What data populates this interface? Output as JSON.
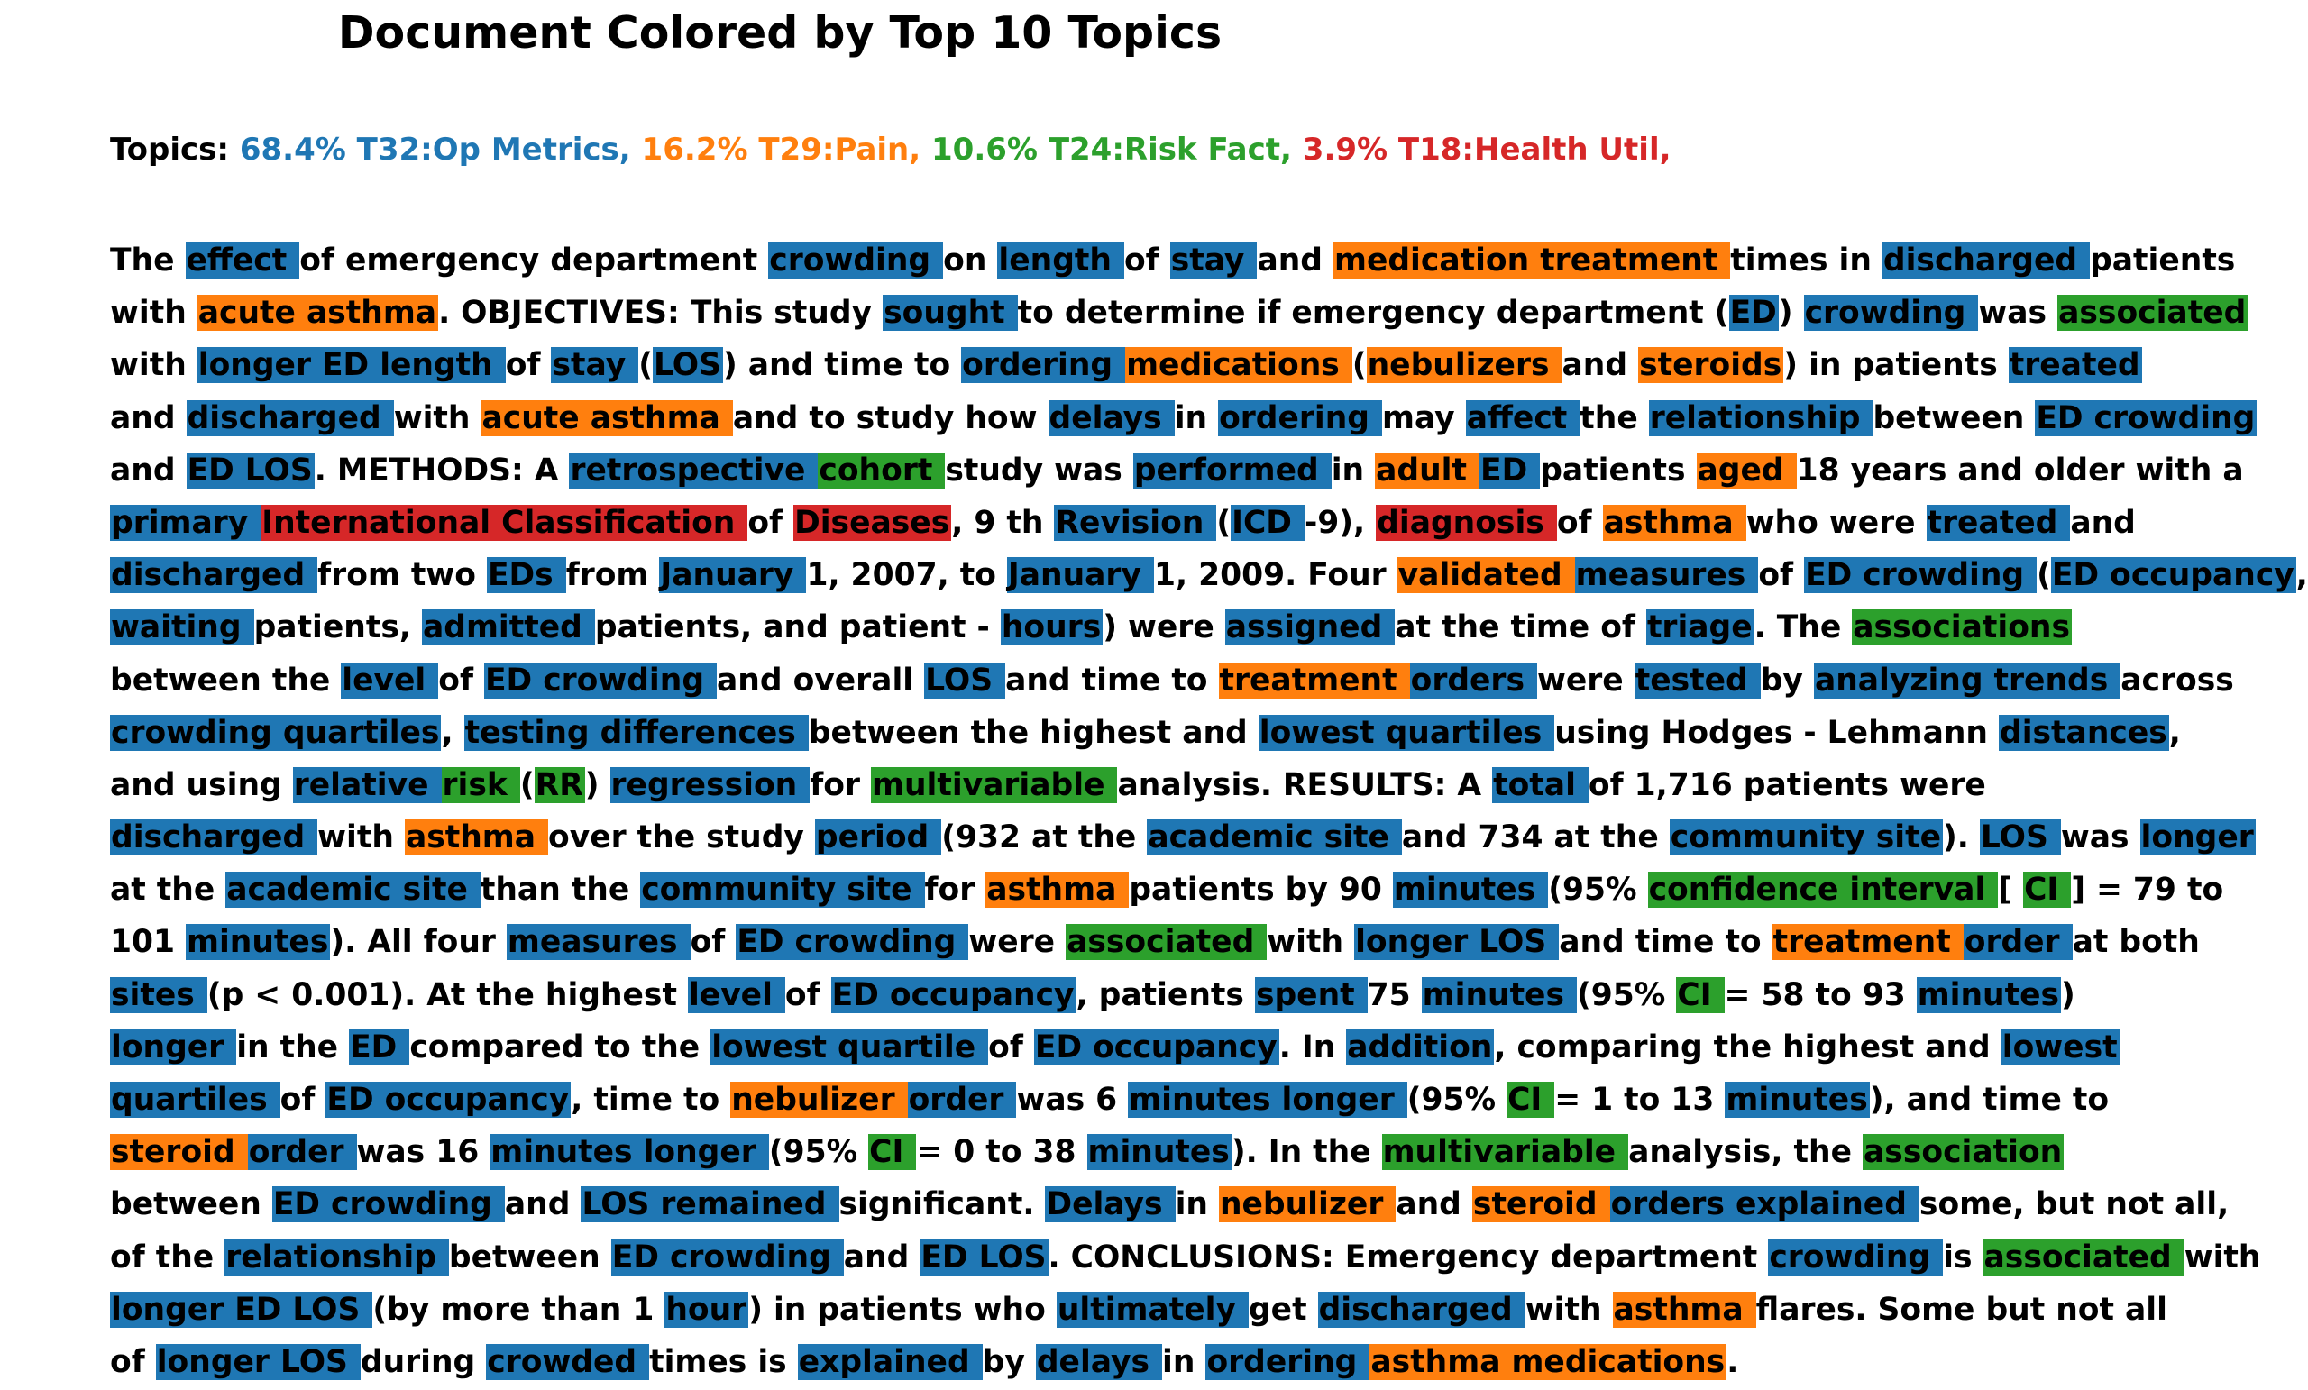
{
  "title": "Document Colored by Top 10 Topics",
  "topics_label": "Topics:",
  "topics": [
    {
      "text": "68.4% T32:Op Metrics,",
      "color": "#1f77b4"
    },
    {
      "text": "16.2% T29:Pain,",
      "color": "#ff7f0e"
    },
    {
      "text": "10.6% T24:Risk Fact,",
      "color": "#2ca02c"
    },
    {
      "text": "3.9% T18:Health Util,",
      "color": "#d62728"
    }
  ],
  "palette": [
    "#1f77b4",
    "#ff7f0e",
    "#2ca02c",
    "#d62728"
  ],
  "lines": [
    [
      [
        "The ",
        null
      ],
      [
        "effect ",
        0
      ],
      [
        "of emergency department ",
        null
      ],
      [
        "crowding ",
        0
      ],
      [
        "on ",
        null
      ],
      [
        "length ",
        0
      ],
      [
        "of ",
        null
      ],
      [
        "stay ",
        0
      ],
      [
        "and ",
        null
      ],
      [
        "medication treatment ",
        1
      ],
      [
        "times in ",
        null
      ],
      [
        "discharged ",
        0
      ],
      [
        "patients",
        null
      ]
    ],
    [
      [
        "with ",
        null
      ],
      [
        "acute asthma",
        1
      ],
      [
        ". OBJECTIVES: This study ",
        null
      ],
      [
        "sought ",
        0
      ],
      [
        "to determine if emergency department (",
        null
      ],
      [
        "ED",
        0
      ],
      [
        ") ",
        null
      ],
      [
        "crowding ",
        0
      ],
      [
        "was ",
        null
      ],
      [
        "associated ",
        2
      ]
    ],
    [
      [
        "with ",
        null
      ],
      [
        "longer ED length ",
        0
      ],
      [
        "of ",
        null
      ],
      [
        "stay ",
        0
      ],
      [
        "(",
        null
      ],
      [
        "LOS",
        0
      ],
      [
        ") and time to ",
        null
      ],
      [
        "ordering ",
        0
      ],
      [
        "medications ",
        1
      ],
      [
        "(",
        null
      ],
      [
        "nebulizers ",
        1
      ],
      [
        "and ",
        null
      ],
      [
        "steroids",
        1
      ],
      [
        ") in patients ",
        null
      ],
      [
        "treated ",
        0
      ]
    ],
    [
      [
        "and ",
        null
      ],
      [
        "discharged ",
        0
      ],
      [
        "with ",
        null
      ],
      [
        "acute asthma ",
        1
      ],
      [
        "and to study how ",
        null
      ],
      [
        "delays ",
        0
      ],
      [
        "in ",
        null
      ],
      [
        "ordering ",
        0
      ],
      [
        "may ",
        null
      ],
      [
        "affect ",
        0
      ],
      [
        "the ",
        null
      ],
      [
        "relationship ",
        0
      ],
      [
        "between ",
        null
      ],
      [
        "ED crowding ",
        0
      ]
    ],
    [
      [
        "and ",
        null
      ],
      [
        "ED LOS",
        0
      ],
      [
        ". METHODS: A ",
        null
      ],
      [
        "retrospective ",
        0
      ],
      [
        "cohort ",
        2
      ],
      [
        "study was ",
        null
      ],
      [
        "performed ",
        0
      ],
      [
        "in ",
        null
      ],
      [
        "adult ",
        1
      ],
      [
        "ED ",
        0
      ],
      [
        "patients ",
        null
      ],
      [
        "aged ",
        1
      ],
      [
        "18 years and older with a",
        null
      ]
    ],
    [
      [
        "primary ",
        0
      ],
      [
        "International Classification ",
        3
      ],
      [
        "of ",
        null
      ],
      [
        "Diseases",
        3
      ],
      [
        ", 9 th ",
        null
      ],
      [
        "Revision ",
        0
      ],
      [
        "(",
        null
      ],
      [
        "ICD ",
        0
      ],
      [
        "-9), ",
        null
      ],
      [
        "diagnosis ",
        3
      ],
      [
        "of ",
        null
      ],
      [
        "asthma ",
        1
      ],
      [
        "who were ",
        null
      ],
      [
        "treated ",
        0
      ],
      [
        "and",
        null
      ]
    ],
    [
      [
        "discharged ",
        0
      ],
      [
        "from two ",
        null
      ],
      [
        "EDs ",
        0
      ],
      [
        "from ",
        null
      ],
      [
        "January ",
        0
      ],
      [
        "1, 2007, to ",
        null
      ],
      [
        "January ",
        0
      ],
      [
        "1, 2009. Four ",
        null
      ],
      [
        "validated ",
        1
      ],
      [
        "measures ",
        0
      ],
      [
        "of ",
        null
      ],
      [
        "ED crowding ",
        0
      ],
      [
        "(",
        null
      ],
      [
        "ED occupancy",
        0
      ],
      [
        ",",
        null
      ]
    ],
    [
      [
        "waiting ",
        0
      ],
      [
        "patients, ",
        null
      ],
      [
        "admitted ",
        0
      ],
      [
        "patients, and patient - ",
        null
      ],
      [
        "hours",
        0
      ],
      [
        ") were ",
        null
      ],
      [
        "assigned ",
        0
      ],
      [
        "at the time of ",
        null
      ],
      [
        "triage",
        0
      ],
      [
        ". The ",
        null
      ],
      [
        "associations ",
        2
      ]
    ],
    [
      [
        "between the ",
        null
      ],
      [
        "level ",
        0
      ],
      [
        "of ",
        null
      ],
      [
        "ED crowding ",
        0
      ],
      [
        "and overall ",
        null
      ],
      [
        "LOS ",
        0
      ],
      [
        "and time to ",
        null
      ],
      [
        "treatment ",
        1
      ],
      [
        "orders ",
        0
      ],
      [
        "were ",
        null
      ],
      [
        "tested ",
        0
      ],
      [
        "by ",
        null
      ],
      [
        "analyzing trends ",
        0
      ],
      [
        "across",
        null
      ]
    ],
    [
      [
        "crowding quartiles",
        0
      ],
      [
        ", ",
        null
      ],
      [
        "testing differences ",
        0
      ],
      [
        "between the highest and ",
        null
      ],
      [
        "lowest quartiles ",
        0
      ],
      [
        "using Hodges - Lehmann ",
        null
      ],
      [
        "distances",
        0
      ],
      [
        ",",
        null
      ]
    ],
    [
      [
        "and using ",
        null
      ],
      [
        "relative ",
        0
      ],
      [
        "risk ",
        2
      ],
      [
        "(",
        null
      ],
      [
        "RR",
        2
      ],
      [
        ") ",
        null
      ],
      [
        "regression ",
        0
      ],
      [
        "for ",
        null
      ],
      [
        "multivariable ",
        2
      ],
      [
        "analysis. RESULTS: A ",
        null
      ],
      [
        "total ",
        0
      ],
      [
        "of 1,716 patients were",
        null
      ]
    ],
    [
      [
        "discharged ",
        0
      ],
      [
        "with ",
        null
      ],
      [
        "asthma ",
        1
      ],
      [
        "over the study ",
        null
      ],
      [
        "period ",
        0
      ],
      [
        "(932 at the ",
        null
      ],
      [
        "academic site ",
        0
      ],
      [
        "and 734 at the ",
        null
      ],
      [
        "community site",
        0
      ],
      [
        "). ",
        null
      ],
      [
        "LOS ",
        0
      ],
      [
        "was ",
        null
      ],
      [
        "longer ",
        0
      ]
    ],
    [
      [
        "at the ",
        null
      ],
      [
        "academic site ",
        0
      ],
      [
        "than the ",
        null
      ],
      [
        "community site ",
        0
      ],
      [
        "for ",
        null
      ],
      [
        "asthma ",
        1
      ],
      [
        "patients by 90 ",
        null
      ],
      [
        "minutes ",
        0
      ],
      [
        "(95% ",
        null
      ],
      [
        "confidence interval ",
        2
      ],
      [
        "[ ",
        null
      ],
      [
        "CI ",
        2
      ],
      [
        "] = 79 to",
        null
      ]
    ],
    [
      [
        "101 ",
        null
      ],
      [
        "minutes",
        0
      ],
      [
        "). All four ",
        null
      ],
      [
        "measures ",
        0
      ],
      [
        "of ",
        null
      ],
      [
        "ED crowding ",
        0
      ],
      [
        "were ",
        null
      ],
      [
        "associated ",
        2
      ],
      [
        "with ",
        null
      ],
      [
        "longer LOS ",
        0
      ],
      [
        "and time to ",
        null
      ],
      [
        "treatment ",
        1
      ],
      [
        "order ",
        0
      ],
      [
        "at both",
        null
      ]
    ],
    [
      [
        "sites ",
        0
      ],
      [
        "(p < 0.001). At the highest ",
        null
      ],
      [
        "level ",
        0
      ],
      [
        "of ",
        null
      ],
      [
        "ED occupancy",
        0
      ],
      [
        ", patients ",
        null
      ],
      [
        "spent ",
        0
      ],
      [
        "75 ",
        null
      ],
      [
        "minutes ",
        0
      ],
      [
        "(95% ",
        null
      ],
      [
        "CI ",
        2
      ],
      [
        "= 58 to 93 ",
        null
      ],
      [
        "minutes",
        0
      ],
      [
        ")",
        null
      ]
    ],
    [
      [
        "longer ",
        0
      ],
      [
        "in the ",
        null
      ],
      [
        "ED ",
        0
      ],
      [
        "compared to the ",
        null
      ],
      [
        "lowest quartile ",
        0
      ],
      [
        "of ",
        null
      ],
      [
        "ED occupancy",
        0
      ],
      [
        ". In ",
        null
      ],
      [
        "addition",
        0
      ],
      [
        ", comparing the highest and ",
        null
      ],
      [
        "lowest ",
        0
      ]
    ],
    [
      [
        "quartiles ",
        0
      ],
      [
        "of ",
        null
      ],
      [
        "ED occupancy",
        0
      ],
      [
        ", time to ",
        null
      ],
      [
        "nebulizer ",
        1
      ],
      [
        "order ",
        0
      ],
      [
        "was 6 ",
        null
      ],
      [
        "minutes longer ",
        0
      ],
      [
        "(95% ",
        null
      ],
      [
        "CI ",
        2
      ],
      [
        "= 1 to 13 ",
        null
      ],
      [
        "minutes",
        0
      ],
      [
        "), and time to",
        null
      ]
    ],
    [
      [
        "steroid ",
        1
      ],
      [
        "order ",
        0
      ],
      [
        "was 16 ",
        null
      ],
      [
        "minutes longer ",
        0
      ],
      [
        "(95% ",
        null
      ],
      [
        "CI ",
        2
      ],
      [
        "= 0 to 38 ",
        null
      ],
      [
        "minutes",
        0
      ],
      [
        "). In the ",
        null
      ],
      [
        "multivariable ",
        2
      ],
      [
        "analysis, the ",
        null
      ],
      [
        "association ",
        2
      ]
    ],
    [
      [
        "between ",
        null
      ],
      [
        "ED crowding ",
        0
      ],
      [
        "and ",
        null
      ],
      [
        "LOS remained ",
        0
      ],
      [
        "significant. ",
        null
      ],
      [
        "Delays ",
        0
      ],
      [
        "in ",
        null
      ],
      [
        "nebulizer ",
        1
      ],
      [
        "and ",
        null
      ],
      [
        "steroid ",
        1
      ],
      [
        "orders explained ",
        0
      ],
      [
        "some, but not all,",
        null
      ]
    ],
    [
      [
        "of the ",
        null
      ],
      [
        "relationship ",
        0
      ],
      [
        "between ",
        null
      ],
      [
        "ED crowding ",
        0
      ],
      [
        "and ",
        null
      ],
      [
        "ED LOS",
        0
      ],
      [
        ". CONCLUSIONS: Emergency department ",
        null
      ],
      [
        "crowding ",
        0
      ],
      [
        "is ",
        null
      ],
      [
        "associated ",
        2
      ],
      [
        "with",
        null
      ]
    ],
    [
      [
        "longer ED LOS ",
        0
      ],
      [
        "(by more than 1 ",
        null
      ],
      [
        "hour",
        0
      ],
      [
        ") in patients who ",
        null
      ],
      [
        "ultimately ",
        0
      ],
      [
        "get ",
        null
      ],
      [
        "discharged ",
        0
      ],
      [
        "with ",
        null
      ],
      [
        "asthma ",
        1
      ],
      [
        "flares. Some but not all",
        null
      ]
    ],
    [
      [
        "of ",
        null
      ],
      [
        "longer LOS ",
        0
      ],
      [
        "during ",
        null
      ],
      [
        "crowded ",
        0
      ],
      [
        "times is ",
        null
      ],
      [
        "explained ",
        0
      ],
      [
        "by ",
        null
      ],
      [
        "delays ",
        0
      ],
      [
        "in ",
        null
      ],
      [
        "ordering ",
        0
      ],
      [
        "asthma medications",
        1
      ],
      [
        ".",
        null
      ]
    ]
  ]
}
